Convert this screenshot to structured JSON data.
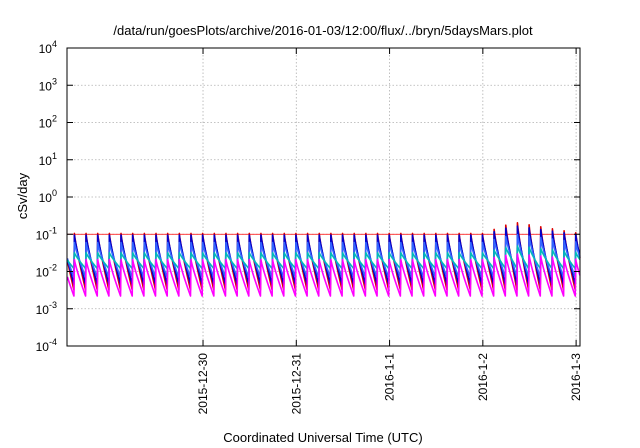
{
  "chart_data": {
    "type": "line",
    "title": "/data/run/goesPlots/archive/2016-01-03/12:00/flux/../bryn/5daysMars.plot",
    "xlabel": "Coordinated Universal Time (UTC)",
    "ylabel": "cSv/day",
    "y_scale": "log",
    "ylim": [
      0.0001,
      10000
    ],
    "y_ticks": [
      {
        "exp": -4,
        "label_base": "10",
        "label_exp": "-4"
      },
      {
        "exp": -3,
        "label_base": "10",
        "label_exp": "-3"
      },
      {
        "exp": -2,
        "label_base": "10",
        "label_exp": "-2"
      },
      {
        "exp": -1,
        "label_base": "10",
        "label_exp": "-1"
      },
      {
        "exp": 0,
        "label_base": "10",
        "label_exp": "0"
      },
      {
        "exp": 1,
        "label_base": "10",
        "label_exp": "1"
      },
      {
        "exp": 2,
        "label_base": "10",
        "label_exp": "2"
      },
      {
        "exp": 3,
        "label_base": "10",
        "label_exp": "3"
      },
      {
        "exp": 4,
        "label_base": "10",
        "label_exp": "4"
      }
    ],
    "x_range_days": [
      "2015-12-29 01:00",
      "2016-01-03 13:00"
    ],
    "x_ticks": [
      {
        "label": "2015-12-30",
        "date": "2015-12-30 12:00"
      },
      {
        "label": "2015-12-31",
        "date": "2015-12-31 12:00"
      },
      {
        "label": "2016-1-1",
        "date": "2016-01-01 12:00"
      },
      {
        "label": "2016-1-2",
        "date": "2016-01-02 12:00"
      },
      {
        "label": "2016-1-3",
        "date": "2016-01-03 12:00"
      }
    ],
    "grid": true,
    "reference_line": {
      "value": 0.1,
      "color": "#ff0000"
    },
    "period_hours": 3,
    "series": [
      {
        "color": "#dd0000",
        "peak": 0.105,
        "trough": 0.0032,
        "enhanced_peak": 0.21
      },
      {
        "color": "#0000cc",
        "peak": 0.095,
        "trough": 0.0045,
        "enhanced_peak": 0.17
      },
      {
        "color": "#3366ff",
        "peak": 0.06,
        "trough": 0.007,
        "enhanced_peak": 0.1
      },
      {
        "color": "#00bbbb",
        "peak": 0.032,
        "trough": 0.012,
        "enhanced_peak": 0.05
      },
      {
        "color": "#ff00ff",
        "peak": 0.021,
        "trough": 0.0022,
        "enhanced_peak": 0.03
      }
    ],
    "enhancement_window": [
      "2016-01-02 12:00",
      "2016-01-03 13:00"
    ]
  }
}
